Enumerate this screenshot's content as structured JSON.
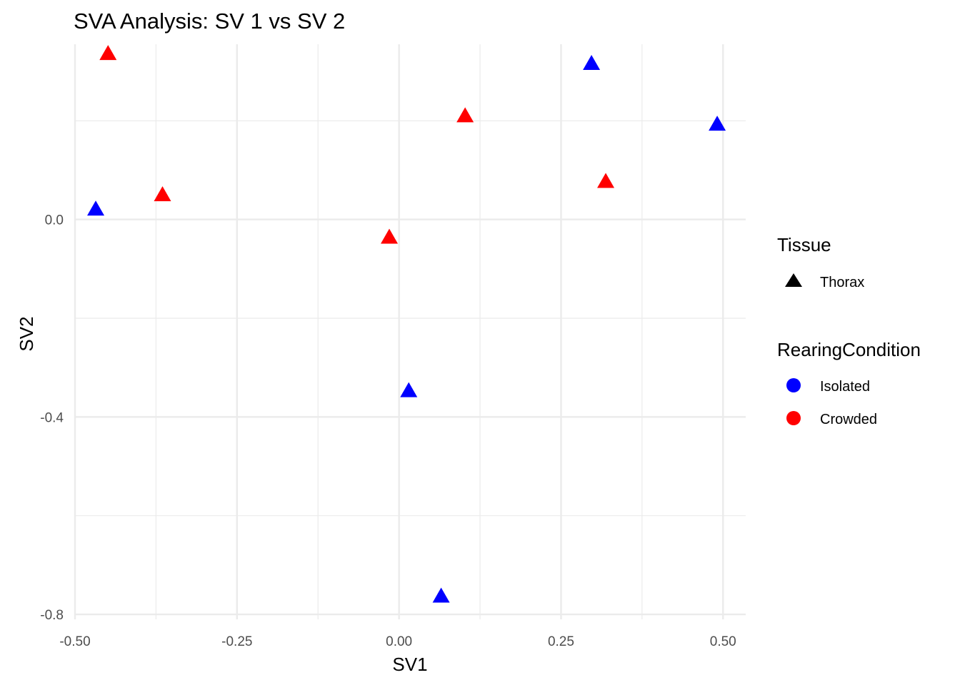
{
  "chart_data": {
    "type": "scatter",
    "title": "SVA Analysis: SV 1  vs SV 2",
    "xlabel": "SV1",
    "ylabel": "SV2",
    "xlim": [
      -0.5,
      0.535
    ],
    "ylim": [
      -0.81,
      0.355
    ],
    "x_ticks": [
      -0.5,
      -0.25,
      0.0,
      0.25,
      0.5
    ],
    "x_tick_labels": [
      "-0.50",
      "-0.25",
      "0.00",
      "0.25",
      "0.50"
    ],
    "x_minor_ticks": [
      -0.375,
      -0.125,
      0.125,
      0.375
    ],
    "y_ticks": [
      -0.8,
      -0.4,
      0.0
    ],
    "y_tick_labels": [
      "-0.8",
      "-0.4",
      "0.0"
    ],
    "y_minor_ticks": [
      -0.6,
      -0.2,
      0.2
    ],
    "grid": true,
    "legend_position": "right",
    "series": [
      {
        "name": "Isolated",
        "color": "#0000ff",
        "shape": "triangle",
        "tissue": "Thorax",
        "x": [
          -0.468,
          0.015,
          0.065,
          0.297,
          0.491
        ],
        "y": [
          0.021,
          -0.347,
          -0.763,
          0.316,
          0.193
        ]
      },
      {
        "name": "Crowded",
        "color": "#ff0000",
        "shape": "triangle",
        "tissue": "Thorax",
        "x": [
          -0.449,
          -0.365,
          -0.015,
          0.102,
          0.319
        ],
        "y": [
          0.336,
          0.05,
          -0.036,
          0.21,
          0.077
        ]
      }
    ],
    "legend": {
      "tissue_title": "Tissue",
      "tissue_items": [
        {
          "label": "Thorax",
          "shape": "triangle",
          "color": "#000000"
        }
      ],
      "condition_title": "RearingCondition",
      "condition_items": [
        {
          "label": "Isolated",
          "shape": "circle",
          "color": "#0000ff"
        },
        {
          "label": "Crowded",
          "shape": "circle",
          "color": "#ff0000"
        }
      ]
    }
  }
}
